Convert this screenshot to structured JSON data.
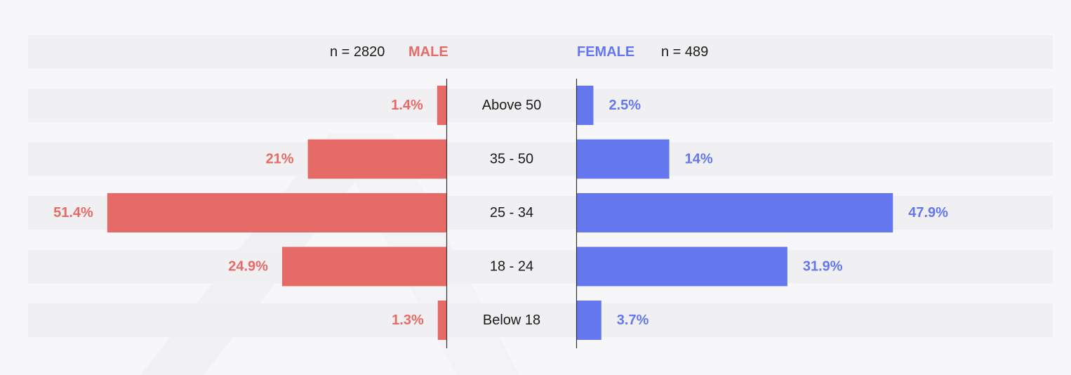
{
  "colors": {
    "male": "#e66b66",
    "female": "#6477ee",
    "band": "#f0f0f3",
    "axis": "#333333",
    "text": "#1a1a1a"
  },
  "header": {
    "male_n": "n = 2820",
    "male_label": "MALE",
    "female_label": "FEMALE",
    "female_n": "n = 489"
  },
  "chart_data": {
    "type": "bar",
    "orientation": "horizontal-butterfly",
    "categories": [
      "Above 50",
      "35 - 50",
      "25 - 34",
      "18 - 24",
      "Below 18"
    ],
    "series": [
      {
        "name": "MALE",
        "values": [
          1.4,
          21,
          51.4,
          24.9,
          1.3
        ],
        "labels": [
          "1.4%",
          "21%",
          "51.4%",
          "24.9%",
          "1.3%"
        ]
      },
      {
        "name": "FEMALE",
        "values": [
          2.5,
          14,
          47.9,
          31.9,
          3.7
        ],
        "labels": [
          "2.5%",
          "14%",
          "47.9%",
          "31.9%",
          "3.7%"
        ]
      }
    ],
    "xlabel": "",
    "ylabel": "",
    "grid": false,
    "legend": "top"
  }
}
